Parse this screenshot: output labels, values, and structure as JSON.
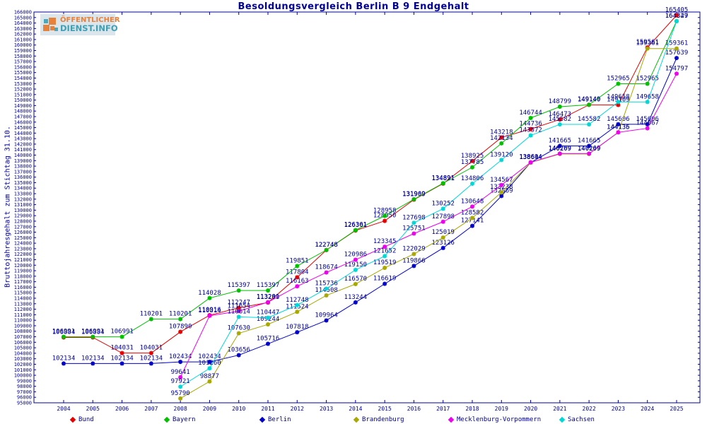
{
  "title": "Besoldungsvergleich Berlin B 9 Endgehalt",
  "logo": {
    "line1": "ÖFFENTLICHER",
    "line2": "DIENST.INFO"
  },
  "colors": {
    "axis": "#000099",
    "background": "#ffffff",
    "logo_orange": "#e8813a",
    "logo_teal": "#3f9fb3"
  },
  "y_axis": {
    "label": "Bruttojahresgehalt zum Stichtag 31.10.",
    "min": 95000,
    "max": 166000,
    "step": 1000
  },
  "chart_data": {
    "type": "line",
    "title": "Besoldungsvergleich Berlin B 9 Endgehalt",
    "ylabel": "Bruttojahresgehalt zum Stichtag 31.10.",
    "ylim": [
      95000,
      166000
    ],
    "grid": false,
    "legend_position": "bottom",
    "point_labels": true,
    "x": [
      2004,
      2005,
      2006,
      2007,
      2008,
      2009,
      2010,
      2011,
      2012,
      2013,
      2014,
      2015,
      2016,
      2017,
      2018,
      2019,
      2020,
      2021,
      2022,
      2023,
      2024,
      2025
    ],
    "series": [
      {
        "name": "Bund",
        "color": "#e60000",
        "values": [
          106884,
          106884,
          104031,
          104031,
          107890,
          110916,
          112247,
          113209,
          117804,
          122748,
          126301,
          128050,
          131909,
          134821,
          138925,
          143218,
          144736,
          146473,
          149140,
          149109,
          159561,
          165405
        ]
      },
      {
        "name": "Bayern",
        "color": "#00c000",
        "values": [
          106991,
          106991,
          106991,
          110201,
          110201,
          114028,
          115397,
          115397,
          119851,
          122748,
          126361,
          128958,
          131969,
          134891,
          137785,
          142134,
          146744,
          148799,
          149149,
          152965,
          152965,
          164347
        ]
      },
      {
        "name": "Berlin",
        "color": "#0000cc",
        "values": [
          102134,
          102134,
          102134,
          102134,
          102434,
          102434,
          103656,
          105716,
          107818,
          109964,
          113244,
          116619,
          119866,
          123126,
          127141,
          132569,
          138644,
          141665,
          141665,
          145606,
          145606,
          157639
        ]
      },
      {
        "name": "Brandenburg",
        "color": "#a8a800",
        "values": [
          null,
          null,
          null,
          null,
          95790,
          98877,
          107630,
          109244,
          111524,
          114508,
          116570,
          119519,
          122029,
          125019,
          128582,
          133238,
          138644,
          140209,
          140209,
          144135,
          159361,
          159361
        ]
      },
      {
        "name": "Mecklenburg-Vorpommern",
        "color": "#ee00ee",
        "values": [
          null,
          null,
          null,
          null,
          99641,
          110814,
          111654,
          113281,
          116163,
          118674,
          120986,
          123345,
          125751,
          127898,
          130648,
          134567,
          138694,
          140269,
          140269,
          144136,
          144867,
          154797
        ]
      },
      {
        "name": "Sachsen",
        "color": "#00d8d8",
        "values": [
          null,
          null,
          null,
          null,
          97921,
          101260,
          110614,
          110447,
          112748,
          115736,
          119150,
          121652,
          127698,
          130252,
          134806,
          139120,
          143572,
          145582,
          145582,
          149658,
          149658,
          164329
        ]
      }
    ]
  }
}
